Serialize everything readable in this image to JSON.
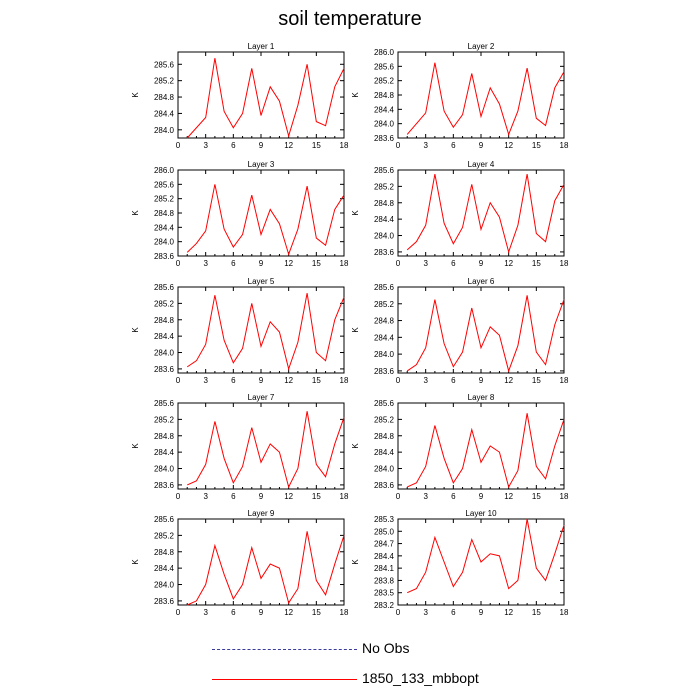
{
  "title": "soil temperature",
  "colors": {
    "line": "#ff0000",
    "no_obs": "#3b3b9b",
    "axis": "#000000"
  },
  "legend": [
    {
      "label": "No Obs",
      "style": "dashed"
    },
    {
      "label": "1850_133_mbbopt",
      "style": "solid"
    }
  ],
  "chart_data": [
    {
      "type": "line",
      "title": "Layer 1",
      "ylabel": "K",
      "xlim": [
        0,
        18
      ],
      "ylim": [
        283.8,
        285.9
      ],
      "xticks": [
        0,
        3,
        6,
        9,
        12,
        15,
        18
      ],
      "yticks": [
        284.0,
        284.4,
        284.8,
        285.2,
        285.6
      ],
      "ytick_labels": [
        "284.0",
        "284.4",
        "284.8",
        "285.2",
        "285.6"
      ],
      "series": [
        {
          "x": [
            1,
            2,
            3,
            4,
            5,
            6,
            7,
            8,
            9,
            10,
            11,
            12,
            13,
            14,
            15,
            16,
            17,
            18
          ],
          "values": [
            283.8,
            284.05,
            284.3,
            285.75,
            284.45,
            284.05,
            284.4,
            285.5,
            284.35,
            285.05,
            284.7,
            283.85,
            284.6,
            285.6,
            284.2,
            284.1,
            285.05,
            285.5
          ]
        }
      ]
    },
    {
      "type": "line",
      "title": "Layer 2",
      "ylabel": "K",
      "xlim": [
        0,
        18
      ],
      "ylim": [
        283.6,
        286.0
      ],
      "xticks": [
        0,
        3,
        6,
        9,
        12,
        15,
        18
      ],
      "yticks": [
        283.6,
        284.0,
        284.4,
        284.8,
        285.2,
        285.6,
        286.0
      ],
      "ytick_labels": [
        "283.6",
        "284.0",
        "284.4",
        "284.8",
        "285.2",
        "285.6",
        "286.0"
      ],
      "series": [
        {
          "x": [
            1,
            2,
            3,
            4,
            5,
            6,
            7,
            8,
            9,
            10,
            11,
            12,
            13,
            14,
            15,
            16,
            17,
            18
          ],
          "values": [
            283.7,
            284.0,
            284.3,
            285.7,
            284.35,
            283.9,
            284.25,
            285.4,
            284.2,
            285.0,
            284.55,
            283.7,
            284.35,
            285.55,
            284.15,
            283.95,
            285.0,
            285.45
          ]
        }
      ]
    },
    {
      "type": "line",
      "title": "Layer 3",
      "ylabel": "K",
      "xlim": [
        0,
        18
      ],
      "ylim": [
        283.6,
        286.0
      ],
      "xticks": [
        0,
        3,
        6,
        9,
        12,
        15,
        18
      ],
      "yticks": [
        283.6,
        284.0,
        284.4,
        284.8,
        285.2,
        285.6,
        286.0
      ],
      "ytick_labels": [
        "283.6",
        "284.0",
        "284.4",
        "284.8",
        "285.2",
        "285.6",
        "286.0"
      ],
      "series": [
        {
          "x": [
            1,
            2,
            3,
            4,
            5,
            6,
            7,
            8,
            9,
            10,
            11,
            12,
            13,
            14,
            15,
            16,
            17,
            18
          ],
          "values": [
            283.7,
            283.95,
            284.3,
            285.6,
            284.35,
            283.85,
            284.2,
            285.3,
            284.2,
            284.9,
            284.5,
            283.65,
            284.35,
            285.55,
            284.1,
            283.9,
            284.9,
            285.3
          ]
        }
      ]
    },
    {
      "type": "line",
      "title": "Layer 4",
      "ylabel": "K",
      "xlim": [
        0,
        18
      ],
      "ylim": [
        283.5,
        285.6
      ],
      "xticks": [
        0,
        3,
        6,
        9,
        12,
        15,
        18
      ],
      "yticks": [
        283.6,
        284.0,
        284.4,
        284.8,
        285.2,
        285.6
      ],
      "ytick_labels": [
        "283.6",
        "284.0",
        "284.4",
        "284.8",
        "285.2",
        "285.6"
      ],
      "series": [
        {
          "x": [
            1,
            2,
            3,
            4,
            5,
            6,
            7,
            8,
            9,
            10,
            11,
            12,
            13,
            14,
            15,
            16,
            17,
            18
          ],
          "values": [
            283.65,
            283.85,
            284.25,
            285.5,
            284.3,
            283.8,
            284.2,
            285.25,
            284.15,
            284.8,
            284.45,
            283.6,
            284.25,
            285.5,
            284.05,
            283.85,
            284.85,
            285.25
          ]
        }
      ]
    },
    {
      "type": "line",
      "title": "Layer 5",
      "ylabel": "K",
      "xlim": [
        0,
        18
      ],
      "ylim": [
        283.5,
        285.6
      ],
      "xticks": [
        0,
        3,
        6,
        9,
        12,
        15,
        18
      ],
      "yticks": [
        283.6,
        284.0,
        284.4,
        284.8,
        285.2,
        285.6
      ],
      "ytick_labels": [
        "283.6",
        "284.0",
        "284.4",
        "284.8",
        "285.2",
        "285.6"
      ],
      "series": [
        {
          "x": [
            1,
            2,
            3,
            4,
            5,
            6,
            7,
            8,
            9,
            10,
            11,
            12,
            13,
            14,
            15,
            16,
            17,
            18
          ],
          "values": [
            283.65,
            283.8,
            284.2,
            285.4,
            284.3,
            283.75,
            284.1,
            285.2,
            284.15,
            284.75,
            284.5,
            283.6,
            284.25,
            285.45,
            284.0,
            283.8,
            284.8,
            285.35
          ]
        }
      ]
    },
    {
      "type": "line",
      "title": "Layer 6",
      "ylabel": "K",
      "xlim": [
        0,
        18
      ],
      "ylim": [
        283.55,
        285.6
      ],
      "xticks": [
        0,
        3,
        6,
        9,
        12,
        15,
        18
      ],
      "yticks": [
        283.6,
        284.0,
        284.4,
        284.8,
        285.2,
        285.6
      ],
      "ytick_labels": [
        "283.6",
        "284.0",
        "284.4",
        "284.8",
        "285.2",
        "285.6"
      ],
      "series": [
        {
          "x": [
            1,
            2,
            3,
            4,
            5,
            6,
            7,
            8,
            9,
            10,
            11,
            12,
            13,
            14,
            15,
            16,
            17,
            18
          ],
          "values": [
            283.6,
            283.75,
            284.15,
            285.3,
            284.25,
            283.7,
            284.05,
            285.1,
            284.15,
            284.65,
            284.45,
            283.6,
            284.2,
            285.4,
            284.05,
            283.75,
            284.7,
            285.3
          ]
        }
      ]
    },
    {
      "type": "line",
      "title": "Layer 7",
      "ylabel": "K",
      "xlim": [
        0,
        18
      ],
      "ylim": [
        283.5,
        285.6
      ],
      "xticks": [
        0,
        3,
        6,
        9,
        12,
        15,
        18
      ],
      "yticks": [
        283.6,
        284.0,
        284.4,
        284.8,
        285.2,
        285.6
      ],
      "ytick_labels": [
        "283.6",
        "284.0",
        "284.4",
        "284.8",
        "285.2",
        "285.6"
      ],
      "series": [
        {
          "x": [
            1,
            2,
            3,
            4,
            5,
            6,
            7,
            8,
            9,
            10,
            11,
            12,
            13,
            14,
            15,
            16,
            17,
            18
          ],
          "values": [
            283.6,
            283.7,
            284.1,
            285.15,
            284.25,
            283.65,
            284.05,
            285.0,
            284.15,
            284.6,
            284.4,
            283.55,
            284.0,
            285.4,
            284.1,
            283.8,
            284.6,
            285.25
          ]
        }
      ]
    },
    {
      "type": "line",
      "title": "Layer 8",
      "ylabel": "K",
      "xlim": [
        0,
        18
      ],
      "ylim": [
        283.5,
        285.6
      ],
      "xticks": [
        0,
        3,
        6,
        9,
        12,
        15,
        18
      ],
      "yticks": [
        283.6,
        284.0,
        284.4,
        284.8,
        285.2,
        285.6
      ],
      "ytick_labels": [
        "283.6",
        "284.0",
        "284.4",
        "284.8",
        "285.2",
        "285.6"
      ],
      "series": [
        {
          "x": [
            1,
            2,
            3,
            4,
            5,
            6,
            7,
            8,
            9,
            10,
            11,
            12,
            13,
            14,
            15,
            16,
            17,
            18
          ],
          "values": [
            283.55,
            283.65,
            284.05,
            285.05,
            284.25,
            283.65,
            284.0,
            284.95,
            284.15,
            284.55,
            284.4,
            283.55,
            283.95,
            285.35,
            284.05,
            283.75,
            284.55,
            285.2
          ]
        }
      ]
    },
    {
      "type": "line",
      "title": "Layer 9",
      "ylabel": "K",
      "xlim": [
        0,
        18
      ],
      "ylim": [
        283.5,
        285.6
      ],
      "xticks": [
        0,
        3,
        6,
        9,
        12,
        15,
        18
      ],
      "yticks": [
        283.6,
        284.0,
        284.4,
        284.8,
        285.2,
        285.6
      ],
      "ytick_labels": [
        "283.6",
        "284.0",
        "284.4",
        "284.8",
        "285.2",
        "285.6"
      ],
      "series": [
        {
          "x": [
            1,
            2,
            3,
            4,
            5,
            6,
            7,
            8,
            9,
            10,
            11,
            12,
            13,
            14,
            15,
            16,
            17,
            18
          ],
          "values": [
            283.5,
            283.6,
            284.0,
            284.95,
            284.25,
            283.65,
            284.0,
            284.9,
            284.15,
            284.5,
            284.4,
            283.55,
            283.9,
            285.3,
            284.1,
            283.75,
            284.5,
            285.2
          ]
        }
      ]
    },
    {
      "type": "line",
      "title": "Layer 10",
      "ylabel": "K",
      "xlim": [
        0,
        18
      ],
      "ylim": [
        283.2,
        285.3
      ],
      "xticks": [
        0,
        3,
        6,
        9,
        12,
        15,
        18
      ],
      "yticks": [
        283.2,
        283.5,
        283.8,
        284.1,
        284.4,
        284.7,
        285.0,
        285.3
      ],
      "ytick_labels": [
        "283.2",
        "283.5",
        "283.8",
        "284.1",
        "284.4",
        "284.7",
        "285.0",
        "285.3"
      ],
      "series": [
        {
          "x": [
            1,
            2,
            3,
            4,
            5,
            6,
            7,
            8,
            9,
            10,
            11,
            12,
            13,
            14,
            15,
            16,
            17,
            18
          ],
          "values": [
            283.5,
            283.6,
            284.0,
            284.85,
            284.25,
            283.65,
            284.0,
            284.8,
            284.25,
            284.45,
            284.4,
            283.6,
            283.8,
            285.3,
            284.1,
            283.8,
            284.45,
            285.15
          ]
        }
      ]
    }
  ]
}
